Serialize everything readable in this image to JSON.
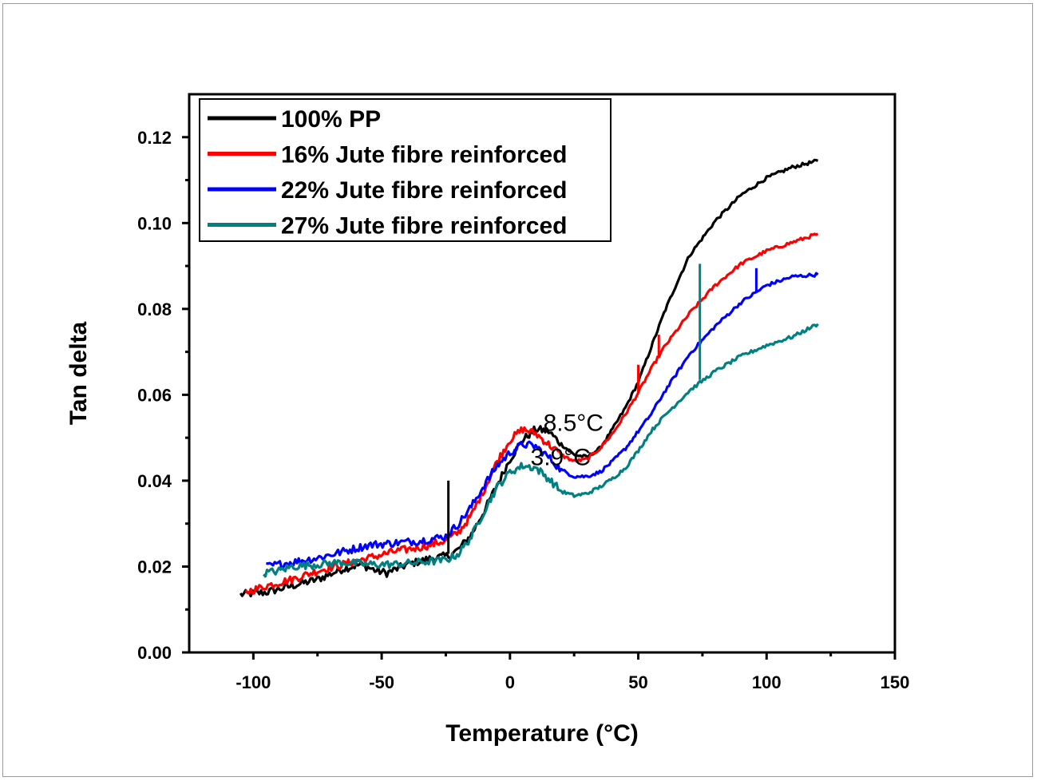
{
  "chart_data": {
    "type": "line",
    "xlabel": "Temperature (°C)",
    "ylabel": "Tan delta",
    "xlim": [
      -125,
      150
    ],
    "ylim": [
      0.0,
      0.13
    ],
    "x_ticks": [
      "-100",
      "-50",
      "0",
      "50",
      "100",
      "150"
    ],
    "y_ticks": [
      "0.00",
      "0.02",
      "0.04",
      "0.06",
      "0.08",
      "0.10",
      "0.12"
    ],
    "legend_position": "top-left",
    "annotations": [
      {
        "text": "8.5°C",
        "x": 13,
        "y": 0.0535
      },
      {
        "text": "3.9°C",
        "x": 8,
        "y": 0.0455
      }
    ],
    "series": [
      {
        "name": "100% PP",
        "color": "#000000",
        "x": [
          -105,
          -95,
          -85,
          -75,
          -65,
          -58,
          -52,
          -48,
          -40,
          -30,
          -24,
          -20,
          -15,
          -10,
          -5,
          0,
          5,
          10,
          15,
          20,
          25,
          30,
          35,
          40,
          45,
          50,
          55,
          60,
          65,
          70,
          80,
          90,
          100,
          110,
          120
        ],
        "y": [
          0.0135,
          0.014,
          0.0155,
          0.017,
          0.0195,
          0.0205,
          0.019,
          0.0185,
          0.0205,
          0.022,
          0.0225,
          0.024,
          0.0275,
          0.033,
          0.039,
          0.045,
          0.0495,
          0.052,
          0.0515,
          0.0485,
          0.046,
          0.0455,
          0.0475,
          0.052,
          0.057,
          0.063,
          0.071,
          0.079,
          0.086,
          0.0925,
          0.1005,
          0.1065,
          0.1105,
          0.113,
          0.1145
        ]
      },
      {
        "name": "16% Jute fibre reinforced",
        "color": "#ff0000",
        "x": [
          -103,
          -95,
          -85,
          -75,
          -65,
          -55,
          -45,
          -35,
          -25,
          -20,
          -15,
          -10,
          -5,
          0,
          5,
          10,
          15,
          20,
          25,
          30,
          35,
          40,
          45,
          50,
          55,
          60,
          70,
          80,
          90,
          100,
          110,
          120
        ],
        "y": [
          0.014,
          0.0155,
          0.017,
          0.019,
          0.0205,
          0.022,
          0.0235,
          0.0245,
          0.026,
          0.028,
          0.032,
          0.038,
          0.0445,
          0.0495,
          0.052,
          0.051,
          0.0485,
          0.046,
          0.0445,
          0.045,
          0.0475,
          0.051,
          0.0555,
          0.0605,
          0.066,
          0.071,
          0.079,
          0.0855,
          0.0905,
          0.0935,
          0.0955,
          0.0975
        ]
      },
      {
        "name": "22% Jute fibre reinforced",
        "color": "#0000ff",
        "x": [
          -95,
          -85,
          -75,
          -65,
          -55,
          -45,
          -35,
          -25,
          -20,
          -15,
          -10,
          -5,
          0,
          5,
          10,
          15,
          20,
          25,
          30,
          35,
          40,
          45,
          50,
          55,
          60,
          70,
          80,
          90,
          100,
          110,
          120
        ],
        "y": [
          0.02,
          0.021,
          0.022,
          0.0235,
          0.025,
          0.0255,
          0.026,
          0.027,
          0.03,
          0.034,
          0.039,
          0.0435,
          0.0465,
          0.0485,
          0.048,
          0.0455,
          0.0425,
          0.041,
          0.041,
          0.042,
          0.0445,
          0.0475,
          0.0515,
          0.0555,
          0.0605,
          0.0695,
          0.076,
          0.0815,
          0.0855,
          0.0875,
          0.088
        ]
      },
      {
        "name": "27% Jute fibre reinforced",
        "color": "#008080",
        "x": [
          -96,
          -90,
          -85,
          -75,
          -65,
          -55,
          -45,
          -35,
          -25,
          -20,
          -15,
          -10,
          -5,
          0,
          5,
          10,
          15,
          20,
          25,
          30,
          35,
          40,
          45,
          50,
          55,
          60,
          70,
          80,
          90,
          100,
          110,
          120
        ],
        "y": [
          0.0185,
          0.019,
          0.02,
          0.0205,
          0.021,
          0.0205,
          0.0205,
          0.021,
          0.0215,
          0.023,
          0.027,
          0.033,
          0.0385,
          0.042,
          0.0435,
          0.043,
          0.0405,
          0.0375,
          0.0365,
          0.037,
          0.0385,
          0.0405,
          0.043,
          0.047,
          0.0515,
          0.055,
          0.061,
          0.0655,
          0.069,
          0.0715,
          0.0735,
          0.0765
        ]
      }
    ],
    "spikes": [
      {
        "series": "100% PP",
        "x": -24,
        "y_from": 0.023,
        "y_to": 0.04
      },
      {
        "series": "16% Jute fibre reinforced",
        "x": 50,
        "y_from": 0.0605,
        "y_to": 0.067
      },
      {
        "series": "16% Jute fibre reinforced",
        "x": 58,
        "y_from": 0.069,
        "y_to": 0.074
      },
      {
        "series": "22% Jute fibre reinforced",
        "x": 96,
        "y_from": 0.084,
        "y_to": 0.0895
      },
      {
        "series": "27% Jute fibre reinforced",
        "x": 74,
        "y_from": 0.0635,
        "y_to": 0.0905
      }
    ]
  }
}
